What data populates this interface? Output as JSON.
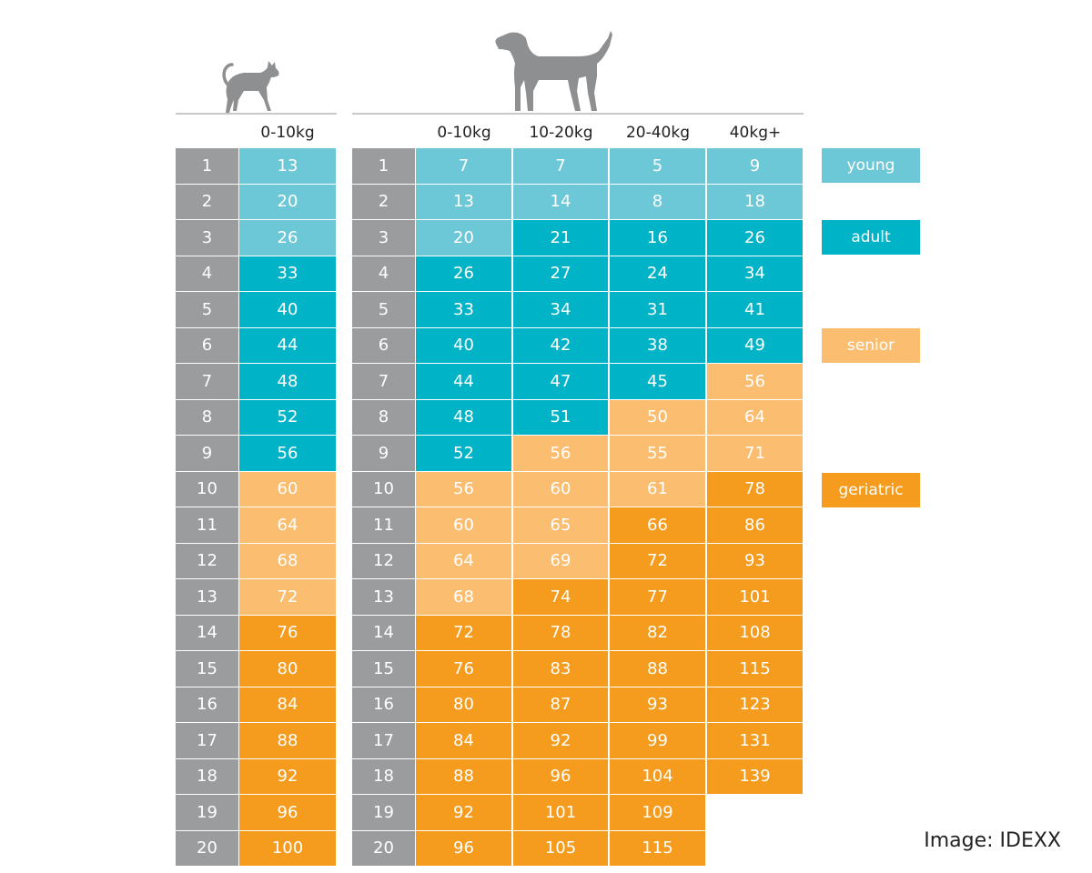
{
  "chart_data": {
    "type": "table",
    "ages": [
      "1",
      "2",
      "3",
      "4",
      "5",
      "6",
      "7",
      "8",
      "9",
      "10",
      "11",
      "12",
      "13",
      "14",
      "15",
      "16",
      "17",
      "18",
      "19",
      "20"
    ],
    "cat": {
      "icon": "cat-silhouette-icon",
      "columns": [
        "0-10kg"
      ],
      "values": [
        [
          "13",
          "20",
          "26",
          "33",
          "40",
          "44",
          "48",
          "52",
          "56",
          "60",
          "64",
          "68",
          "72",
          "76",
          "80",
          "84",
          "88",
          "92",
          "96",
          "100"
        ]
      ],
      "stages": [
        [
          "young",
          "young",
          "young",
          "adult",
          "adult",
          "adult",
          "adult",
          "adult",
          "adult",
          "senior",
          "senior",
          "senior",
          "senior",
          "geriatric",
          "geriatric",
          "geriatric",
          "geriatric",
          "geriatric",
          "geriatric",
          "geriatric"
        ]
      ]
    },
    "dog": {
      "icon": "dog-silhouette-icon",
      "columns": [
        "0-10kg",
        "10-20kg",
        "20-40kg",
        "40kg+"
      ],
      "values": [
        [
          "7",
          "13",
          "20",
          "26",
          "33",
          "40",
          "44",
          "48",
          "52",
          "56",
          "60",
          "64",
          "68",
          "72",
          "76",
          "80",
          "84",
          "88",
          "92",
          "96"
        ],
        [
          "7",
          "14",
          "21",
          "27",
          "34",
          "42",
          "47",
          "51",
          "56",
          "60",
          "65",
          "69",
          "74",
          "78",
          "83",
          "87",
          "92",
          "96",
          "101",
          "105"
        ],
        [
          "5",
          "8",
          "16",
          "24",
          "31",
          "38",
          "45",
          "50",
          "55",
          "61",
          "66",
          "72",
          "77",
          "82",
          "88",
          "93",
          "99",
          "104",
          "109",
          "115"
        ],
        [
          "9",
          "18",
          "26",
          "34",
          "41",
          "49",
          "56",
          "64",
          "71",
          "78",
          "86",
          "93",
          "101",
          "108",
          "115",
          "123",
          "131",
          "139",
          "",
          ""
        ]
      ],
      "stages": [
        [
          "young",
          "young",
          "young",
          "adult",
          "adult",
          "adult",
          "adult",
          "adult",
          "adult",
          "senior",
          "senior",
          "senior",
          "senior",
          "geriatric",
          "geriatric",
          "geriatric",
          "geriatric",
          "geriatric",
          "geriatric",
          "geriatric"
        ],
        [
          "young",
          "young",
          "adult",
          "adult",
          "adult",
          "adult",
          "adult",
          "adult",
          "senior",
          "senior",
          "senior",
          "senior",
          "geriatric",
          "geriatric",
          "geriatric",
          "geriatric",
          "geriatric",
          "geriatric",
          "geriatric",
          "geriatric"
        ],
        [
          "young",
          "young",
          "adult",
          "adult",
          "adult",
          "adult",
          "adult",
          "senior",
          "senior",
          "senior",
          "geriatric",
          "geriatric",
          "geriatric",
          "geriatric",
          "geriatric",
          "geriatric",
          "geriatric",
          "geriatric",
          "geriatric",
          "geriatric"
        ],
        [
          "young",
          "young",
          "adult",
          "adult",
          "adult",
          "adult",
          "senior",
          "senior",
          "senior",
          "geriatric",
          "geriatric",
          "geriatric",
          "geriatric",
          "geriatric",
          "geriatric",
          "geriatric",
          "geriatric",
          "geriatric",
          "",
          ""
        ]
      ]
    },
    "legend": [
      {
        "key": "young",
        "label": "young",
        "color": "#6cc7d7"
      },
      {
        "key": "adult",
        "label": "adult",
        "color": "#00b3c7"
      },
      {
        "key": "senior",
        "label": "senior",
        "color": "#fbbd70"
      },
      {
        "key": "geriatric",
        "label": "geriatric",
        "color": "#f59c1e"
      }
    ],
    "age_color": "#9b9c9e"
  },
  "credit": "Image: IDEXX"
}
